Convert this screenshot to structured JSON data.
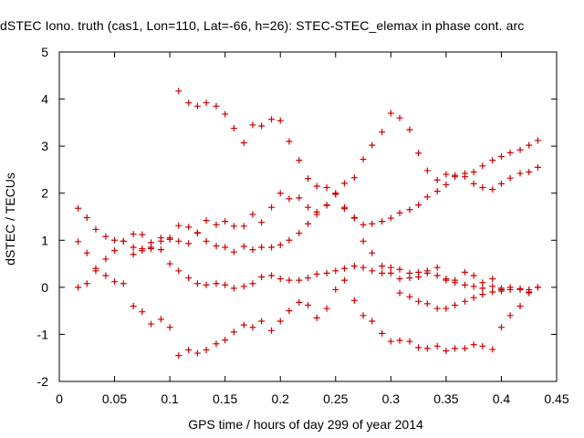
{
  "chart_data": {
    "type": "scatter",
    "title": "dSTEC Iono. truth (cas1, Lon=110, Lat=-66, h=26): STEC-STEC_elemax in phase cont. arc",
    "xlabel": "GPS time / hours of day 299 of year 2014",
    "ylabel": "dSTEC  / TECUs",
    "xlim": [
      0,
      0.45
    ],
    "ylim": [
      -2,
      5
    ],
    "x_ticks": [
      "0",
      "0.05",
      "0.1",
      "0.15",
      "0.2",
      "0.25",
      "0.3",
      "0.35",
      "0.4",
      "0.45"
    ],
    "y_ticks": [
      "-2",
      "-1",
      "0",
      "1",
      "2",
      "3",
      "4",
      "5"
    ],
    "grid": false,
    "legend": "none",
    "marker": "+",
    "color": "#cc0000",
    "series": [
      {
        "x": [
          0.108,
          0.117,
          0.125,
          0.133,
          0.142,
          0.15,
          0.158,
          0.167,
          0.175,
          0.183,
          0.192,
          0.2,
          0.208,
          0.217,
          0.225,
          0.233,
          0.242,
          0.25,
          0.258,
          0.267,
          0.275,
          0.283,
          0.292,
          0.3,
          0.308,
          0.317,
          0.325,
          0.333,
          0.342,
          0.35,
          0.358,
          0.367,
          0.375,
          0.383,
          0.392,
          0.4,
          0.408,
          0.417,
          0.425,
          0.433
        ],
        "y": [
          4.17,
          3.92,
          3.85,
          3.92,
          3.85,
          3.68,
          3.38,
          3.07,
          3.45,
          3.43,
          3.57,
          3.54,
          3.1,
          2.7,
          2.31,
          2.15,
          2.12,
          1.98,
          2.21,
          2.33,
          2.72,
          3.02,
          3.3,
          3.7,
          3.6,
          3.35,
          2.85,
          2.48,
          2.28,
          2.4,
          2.38,
          2.35,
          2.45,
          2.58,
          2.7,
          2.78,
          2.86,
          2.92,
          3.02,
          3.12
        ]
      },
      {
        "x": [
          0.017,
          0.025,
          0.033,
          0.042,
          0.05,
          0.058,
          0.067,
          0.075,
          0.083,
          0.092,
          0.1,
          0.108,
          0.117,
          0.125,
          0.133,
          0.142,
          0.15,
          0.158,
          0.167,
          0.175,
          0.183,
          0.192,
          0.2,
          0.208,
          0.217,
          0.225,
          0.233,
          0.242,
          0.25,
          0.258,
          0.267,
          0.275,
          0.283,
          0.292,
          0.3,
          0.308,
          0.317,
          0.325,
          0.333,
          0.342,
          0.35,
          0.358,
          0.367,
          0.375,
          0.383,
          0.392,
          0.4,
          0.408,
          0.417,
          0.425,
          0.433
        ],
        "y": [
          1.68,
          1.48,
          1.23,
          1.08,
          1.0,
          0.98,
          1.13,
          1.12,
          0.85,
          0.8,
          1.05,
          1.31,
          1.28,
          1.16,
          1.42,
          1.33,
          1.4,
          1.3,
          1.3,
          1.55,
          1.38,
          1.7,
          2.0,
          1.88,
          1.9,
          1.7,
          1.6,
          1.74,
          2.0,
          1.67,
          1.48,
          1.33,
          1.35,
          1.4,
          1.47,
          1.58,
          1.65,
          1.75,
          1.92,
          2.04,
          2.18,
          2.35,
          2.42,
          2.2,
          2.12,
          2.08,
          2.2,
          2.32,
          2.42,
          2.45,
          2.55
        ]
      },
      {
        "x": [
          0.017,
          0.025,
          0.033,
          0.042,
          0.05,
          0.058,
          0.067,
          0.075,
          0.083,
          0.092,
          0.1,
          0.108,
          0.117,
          0.125,
          0.133,
          0.142,
          0.15,
          0.158,
          0.167,
          0.175,
          0.183,
          0.192,
          0.2,
          0.208,
          0.217,
          0.225,
          0.233,
          0.242,
          0.25,
          0.258,
          0.267,
          0.275,
          0.283,
          0.292,
          0.3,
          0.308,
          0.317,
          0.325,
          0.333,
          0.342,
          0.35,
          0.358,
          0.367,
          0.375,
          0.383,
          0.392,
          0.4,
          0.408,
          0.417,
          0.425,
          0.433
        ],
        "y": [
          0.97,
          0.73,
          0.4,
          0.6,
          0.78,
          0.98,
          0.7,
          0.82,
          0.82,
          0.98,
          1.02,
          0.98,
          0.93,
          1.15,
          0.98,
          0.88,
          0.85,
          0.75,
          0.87,
          0.8,
          0.85,
          0.85,
          0.9,
          1.0,
          1.15,
          1.35,
          1.55,
          1.75,
          1.98,
          1.7,
          1.47,
          0.98,
          0.73,
          0.45,
          0.3,
          0.18,
          0.2,
          0.22,
          0.3,
          0.25,
          0.18,
          0.1,
          0.05,
          0.02,
          -0.02,
          0.02,
          -0.02,
          0.0,
          -0.03,
          -0.05,
          0.0
        ]
      },
      {
        "x": [
          0.017,
          0.025,
          0.033,
          0.042,
          0.05,
          0.058,
          0.067,
          0.075,
          0.083,
          0.092,
          0.1,
          0.108,
          0.117,
          0.125,
          0.133,
          0.142,
          0.15,
          0.158,
          0.167,
          0.175,
          0.183,
          0.192,
          0.2,
          0.208,
          0.217,
          0.225,
          0.233,
          0.242,
          0.25,
          0.258,
          0.267,
          0.275,
          0.283,
          0.292,
          0.3,
          0.308,
          0.317,
          0.325,
          0.333,
          0.342,
          0.35,
          0.358,
          0.367,
          0.375,
          0.383,
          0.392,
          0.4,
          0.408,
          0.417,
          0.425,
          0.433
        ],
        "y": [
          0.0,
          0.08,
          0.35,
          0.25,
          0.12,
          0.08,
          0.85,
          0.78,
          0.95,
          1.05,
          0.5,
          0.35,
          0.2,
          0.08,
          0.05,
          0.08,
          0.05,
          -0.02,
          0.02,
          0.08,
          0.22,
          0.25,
          0.18,
          0.15,
          0.15,
          0.2,
          0.28,
          0.3,
          0.35,
          0.4,
          0.45,
          0.42,
          0.35,
          0.3,
          0.42,
          0.38,
          0.3,
          0.32,
          0.35,
          0.42,
          0.15,
          0.15,
          0.32,
          0.25,
          0.1,
          0.18,
          -0.08,
          -0.05,
          -0.05,
          -0.1,
          0.0
        ]
      },
      {
        "x": [
          0.067,
          0.075,
          0.083,
          0.092,
          0.1,
          0.108,
          0.117,
          0.125,
          0.133,
          0.142,
          0.15,
          0.158,
          0.167,
          0.175,
          0.183,
          0.192,
          0.2,
          0.208,
          0.217,
          0.225,
          0.233,
          0.242,
          0.25,
          0.258,
          0.267,
          0.275,
          0.283,
          0.292,
          0.3,
          0.308,
          0.317,
          0.325,
          0.333,
          0.342,
          0.35,
          0.358,
          0.367,
          0.375,
          0.383,
          0.392,
          0.4,
          0.408,
          0.417,
          0.425
        ],
        "y": [
          -0.4,
          -0.52,
          -0.78,
          -0.68,
          -0.85,
          -1.45,
          -1.33,
          -1.4,
          -1.33,
          -1.2,
          -1.12,
          -0.95,
          -0.8,
          -0.85,
          -0.72,
          -0.92,
          -0.72,
          -0.5,
          -0.32,
          -0.38,
          -0.65,
          -0.45,
          -0.05,
          0.15,
          -0.28,
          -0.6,
          -0.72,
          -0.98,
          -1.15,
          -1.13,
          -1.15,
          -1.28,
          -1.3,
          -1.25,
          -1.35,
          -1.3,
          -1.3,
          -1.22,
          -1.25,
          -1.32,
          -0.85,
          -0.6,
          -0.4,
          -0.12
        ]
      },
      {
        "x": [
          0.308,
          0.317,
          0.325,
          0.333,
          0.342,
          0.35,
          0.358,
          0.367,
          0.375,
          0.383,
          0.392,
          0.4
        ],
        "y": [
          -0.12,
          -0.2,
          -0.3,
          -0.35,
          -0.45,
          -0.45,
          -0.38,
          -0.3,
          -0.22,
          -0.15,
          -0.1,
          -0.05
        ]
      }
    ]
  }
}
